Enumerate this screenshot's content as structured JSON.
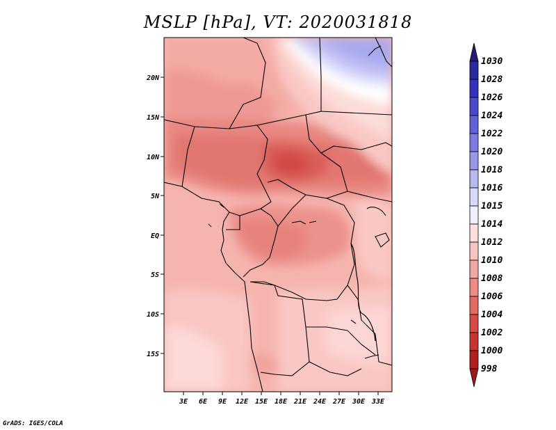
{
  "title": "MSLP [hPa], VT: 2020031818",
  "footer": "GrADS: IGES/COLA",
  "map": {
    "lat_labels": [
      "20N",
      "15N",
      "10N",
      "5N",
      "EQ",
      "5S",
      "10S",
      "15S"
    ],
    "lon_labels": [
      "3E",
      "6E",
      "9E",
      "12E",
      "15E",
      "18E",
      "21E",
      "24E",
      "27E",
      "30E",
      "33E"
    ]
  },
  "colorbar": {
    "levels": [
      "1030",
      "1028",
      "1026",
      "1024",
      "1022",
      "1020",
      "1018",
      "1016",
      "1015",
      "1014",
      "1012",
      "1010",
      "1008",
      "1006",
      "1004",
      "1002",
      "1000",
      "998"
    ],
    "colors": [
      "#241a78",
      "#2a2a9e",
      "#3333bb",
      "#4a4acc",
      "#6262d8",
      "#7c7ce0",
      "#9898e8",
      "#b8b8f0",
      "#d8d8f8",
      "#f0f0fc",
      "#fde0de",
      "#f8c4c0",
      "#f2a8a2",
      "#ec8a84",
      "#e46a64",
      "#d84a44",
      "#c83430",
      "#b02020",
      "#a01818"
    ]
  }
}
